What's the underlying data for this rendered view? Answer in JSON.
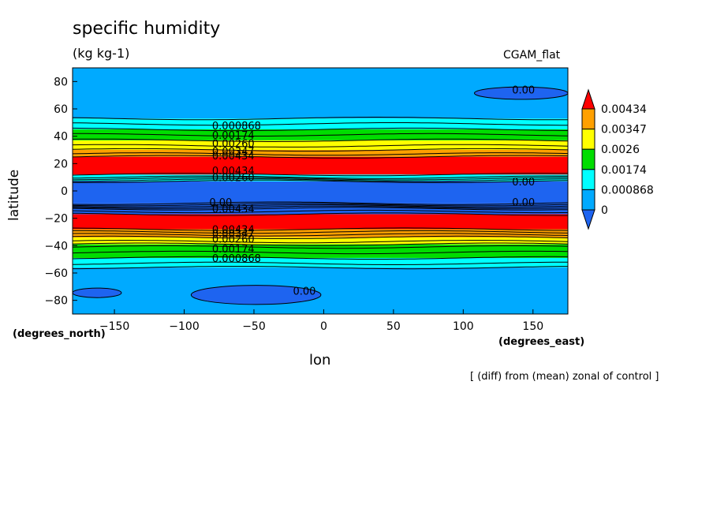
{
  "chart_data": {
    "type": "heatmap",
    "title": "specific humidity",
    "units": "(kg kg-1)",
    "dataset": "CGAM_flat",
    "xlabel": "lon",
    "ylabel": "latitude",
    "x_unit_note": "(degrees_east)",
    "y_unit_note": "(degrees_north)",
    "footnote": "[ (diff) from (mean) zonal of control ]",
    "xlim": [
      -180,
      175
    ],
    "ylim": [
      -90,
      90
    ],
    "x_ticks": [
      -150,
      -100,
      -50,
      0,
      50,
      100,
      150
    ],
    "y_ticks": [
      -80,
      -60,
      -40,
      -20,
      0,
      20,
      40,
      60,
      80
    ],
    "colorbar": {
      "levels": [
        "0",
        "0.000868",
        "0.00174",
        "0.0026",
        "0.00347",
        "0.00434"
      ],
      "colors": [
        "#1e64f0",
        "#00aaff",
        "#00ffff",
        "#00dd00",
        "#ffff00",
        "#ffa000",
        "#ff0000"
      ]
    },
    "bands": [
      {
        "lat_from": -90,
        "lat_to": -56,
        "level": 1
      },
      {
        "lat_from": -56,
        "lat_to": -49,
        "level": 2
      },
      {
        "lat_from": -49,
        "lat_to": -39,
        "level": 3
      },
      {
        "lat_from": -39,
        "lat_to": -34,
        "level": 4
      },
      {
        "lat_from": -34,
        "lat_to": -28,
        "level": 5
      },
      {
        "lat_from": -28,
        "lat_to": -17,
        "level": 6
      },
      {
        "lat_from": -17,
        "lat_to": -9,
        "level": 0
      },
      {
        "lat_from": -9,
        "lat_to": 7,
        "level": 0
      },
      {
        "lat_from": 7,
        "lat_to": 12,
        "level": 2
      },
      {
        "lat_from": 12,
        "lat_to": 25,
        "level": 6
      },
      {
        "lat_from": 25,
        "lat_to": 30,
        "level": 5
      },
      {
        "lat_from": 30,
        "lat_to": 37,
        "level": 4
      },
      {
        "lat_from": 37,
        "lat_to": 45,
        "level": 3
      },
      {
        "lat_from": 45,
        "lat_to": 53,
        "level": 2
      },
      {
        "lat_from": 53,
        "lat_to": 90,
        "level": 1
      }
    ],
    "contour_labels": [
      {
        "text": "0.000868",
        "lon": -80,
        "lat": 48
      },
      {
        "text": "0.00174",
        "lon": -80,
        "lat": 41
      },
      {
        "text": "0.00260",
        "lon": -80,
        "lat": 35
      },
      {
        "text": "0.00347",
        "lon": -80,
        "lat": 29
      },
      {
        "text": "0.00434",
        "lon": -80,
        "lat": 26
      },
      {
        "text": "0.00434",
        "lon": -80,
        "lat": 15
      },
      {
        "text": "0.00260",
        "lon": -80,
        "lat": 10
      },
      {
        "text": "0.00",
        "lon": 135,
        "lat": 7
      },
      {
        "text": "0.00",
        "lon": -82,
        "lat": -8
      },
      {
        "text": "0.00434",
        "lon": -80,
        "lat": -13
      },
      {
        "text": "0.00",
        "lon": 135,
        "lat": -8
      },
      {
        "text": "0.00434",
        "lon": -80,
        "lat": -28
      },
      {
        "text": "0.00347",
        "lon": -80,
        "lat": -31
      },
      {
        "text": "0.00260",
        "lon": -80,
        "lat": -35
      },
      {
        "text": "0.00174",
        "lon": -80,
        "lat": -42
      },
      {
        "text": "0.000868",
        "lon": -80,
        "lat": -49
      },
      {
        "text": "0.00",
        "lon": 135,
        "lat": 74
      },
      {
        "text": "0.00",
        "lon": -22,
        "lat": -73
      }
    ],
    "zero_patches": [
      {
        "lon_from": -180,
        "lon_to": -145,
        "lat_from": -78,
        "lat_to": -71
      },
      {
        "lon_from": -95,
        "lon_to": -2,
        "lat_from": -83,
        "lat_to": -69
      },
      {
        "lon_from": 108,
        "lon_to": 175,
        "lat_from": 67,
        "lat_to": 76
      }
    ]
  }
}
